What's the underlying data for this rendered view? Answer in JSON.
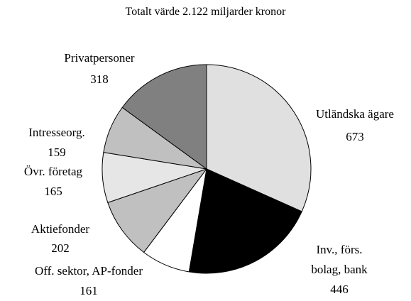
{
  "chart_data": {
    "type": "pie",
    "title": "Totalt värde 2.122 miljarder kronor",
    "categories": [
      "Utländska ägare",
      "Inv., förs. bolag, bank",
      "Off. sektor, AP-fonder",
      "Aktiefonder",
      "Övr. företag",
      "Intresseorg.",
      "Privatpersoner"
    ],
    "values": [
      673,
      446,
      161,
      202,
      165,
      159,
      318
    ],
    "colors": [
      "#e0e0e0",
      "#000000",
      "#ffffff",
      "#c0c0c0",
      "#e6e6e6",
      "#c0c0c0",
      "#808080"
    ]
  }
}
